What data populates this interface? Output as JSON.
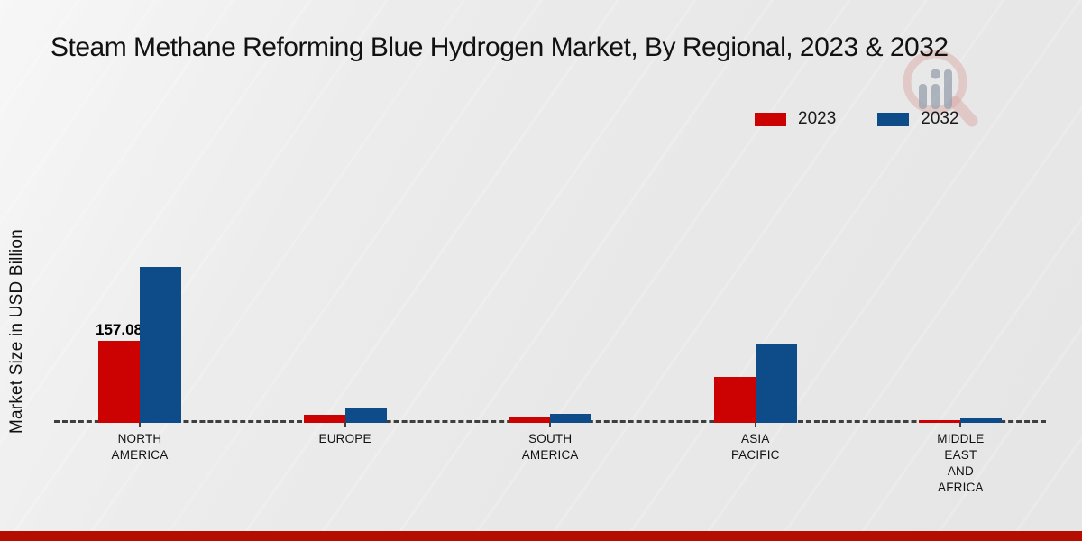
{
  "title": "Steam Methane Reforming Blue Hydrogen Market, By Regional, 2023 & 2032",
  "ylabel": "Market Size in USD Billion",
  "legend": {
    "items": [
      {
        "label": "2023",
        "color": "#cc0202"
      },
      {
        "label": "2032",
        "color": "#0d4c88"
      }
    ]
  },
  "logo": {
    "name": "magnifier-bars-logo",
    "ring_color": "#d9a5a2",
    "bars_color": "#8f9aa7"
  },
  "footer": {
    "accent_color": "#b50d00"
  },
  "chart_data": {
    "type": "bar",
    "title": "Steam Methane Reforming Blue Hydrogen Market, By Regional, 2023 & 2032",
    "xlabel": "",
    "ylabel": "Market Size in USD Billion",
    "categories": [
      "NORTH\nAMERICA",
      "EUROPE",
      "SOUTH\nAMERICA",
      "ASIA\nPACIFIC",
      "MIDDLE\nEAST\nAND\nAFRICA"
    ],
    "series": [
      {
        "name": "2023",
        "color": "#cc0202",
        "values": [
          157.08,
          15.5,
          9.8,
          87.5,
          5.2
        ],
        "labels": [
          "157.08",
          null,
          null,
          null,
          null
        ]
      },
      {
        "name": "2032",
        "color": "#0d4c88",
        "values": [
          298.6,
          28.9,
          16.8,
          150.8,
          8.6
        ],
        "labels": [
          null,
          null,
          null,
          null,
          null
        ]
      }
    ],
    "ylim": [
      0,
      320
    ],
    "grid": false,
    "y_axis_ticks_visible": false,
    "baseline_style": "dashed",
    "legend_position": "top-right"
  }
}
